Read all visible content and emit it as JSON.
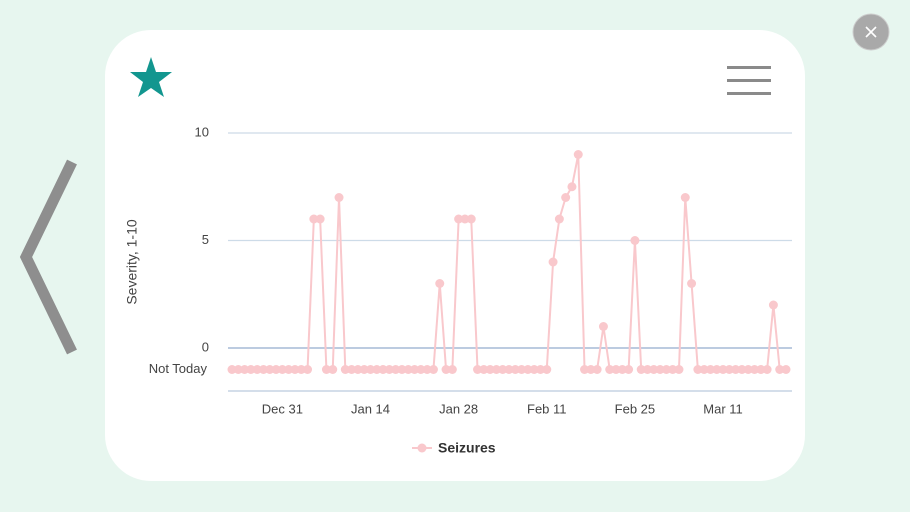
{
  "chart_data": {
    "type": "line",
    "y_label": "Severity, 1-10",
    "categories": [
      null,
      null,
      null,
      null,
      null,
      null,
      null,
      null,
      "Dec 31",
      null,
      null,
      null,
      null,
      null,
      null,
      null,
      null,
      null,
      null,
      null,
      null,
      null,
      "Jan 14",
      null,
      null,
      null,
      null,
      null,
      null,
      null,
      null,
      null,
      null,
      null,
      null,
      null,
      "Jan 28",
      null,
      null,
      null,
      null,
      null,
      null,
      null,
      null,
      null,
      null,
      null,
      null,
      null,
      "Feb 11",
      null,
      null,
      null,
      null,
      null,
      null,
      null,
      null,
      null,
      null,
      null,
      null,
      null,
      "Feb 25",
      null,
      null,
      null,
      null,
      null,
      null,
      null,
      null,
      null,
      null,
      null,
      null,
      null,
      "Mar 11",
      null,
      null,
      null,
      null,
      null,
      null,
      null,
      null,
      null,
      null
    ],
    "series": [
      {
        "name": "Seizures",
        "color": "#f9c8cc",
        "values": [
          -1,
          -1,
          -1,
          -1,
          -1,
          -1,
          -1,
          -1,
          -1,
          -1,
          -1,
          -1,
          -1,
          6,
          6,
          -1,
          -1,
          7,
          -1,
          -1,
          -1,
          -1,
          -1,
          -1,
          -1,
          -1,
          -1,
          -1,
          -1,
          -1,
          -1,
          -1,
          -1,
          3,
          -1,
          -1,
          6,
          6,
          6,
          -1,
          -1,
          -1,
          -1,
          -1,
          -1,
          -1,
          -1,
          -1,
          -1,
          -1,
          -1,
          4,
          6,
          7,
          7.5,
          9,
          -1,
          -1,
          -1,
          1,
          -1,
          -1,
          -1,
          -1,
          5,
          -1,
          -1,
          -1,
          -1,
          -1,
          -1,
          -1,
          7,
          3,
          -1,
          -1,
          -1,
          -1,
          -1,
          -1,
          -1,
          -1,
          -1,
          -1,
          -1,
          -1,
          2,
          -1,
          -1
        ]
      }
    ],
    "ylim": [
      -2,
      10
    ],
    "yticks": [
      {
        "value": -1,
        "label": "Not Today"
      },
      0,
      5,
      10
    ],
    "grid": true
  }
}
